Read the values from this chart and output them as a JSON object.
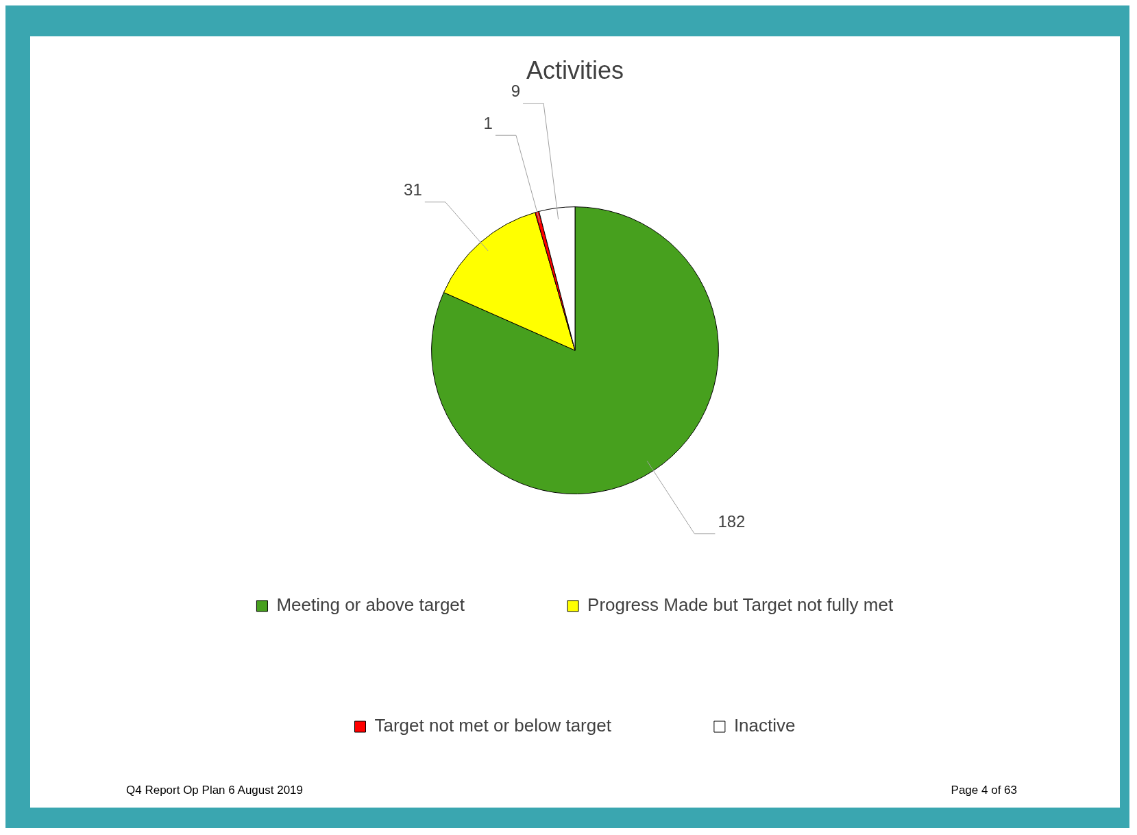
{
  "chart_data": {
    "type": "pie",
    "title": "Activities",
    "categories": [
      "Meeting or above target",
      "Progress Made but Target not fully met",
      "Target not met or below target",
      "Inactive"
    ],
    "values": [
      182,
      31,
      1,
      9
    ],
    "colors": [
      "#47a01e",
      "#ffff00",
      "#ff0000",
      "#ffffff"
    ],
    "data_labels": true,
    "legend": "bottom",
    "annotations": [
      "Q4 Report Op Plan 6 August 2019",
      "Page 4 of 63"
    ]
  }
}
